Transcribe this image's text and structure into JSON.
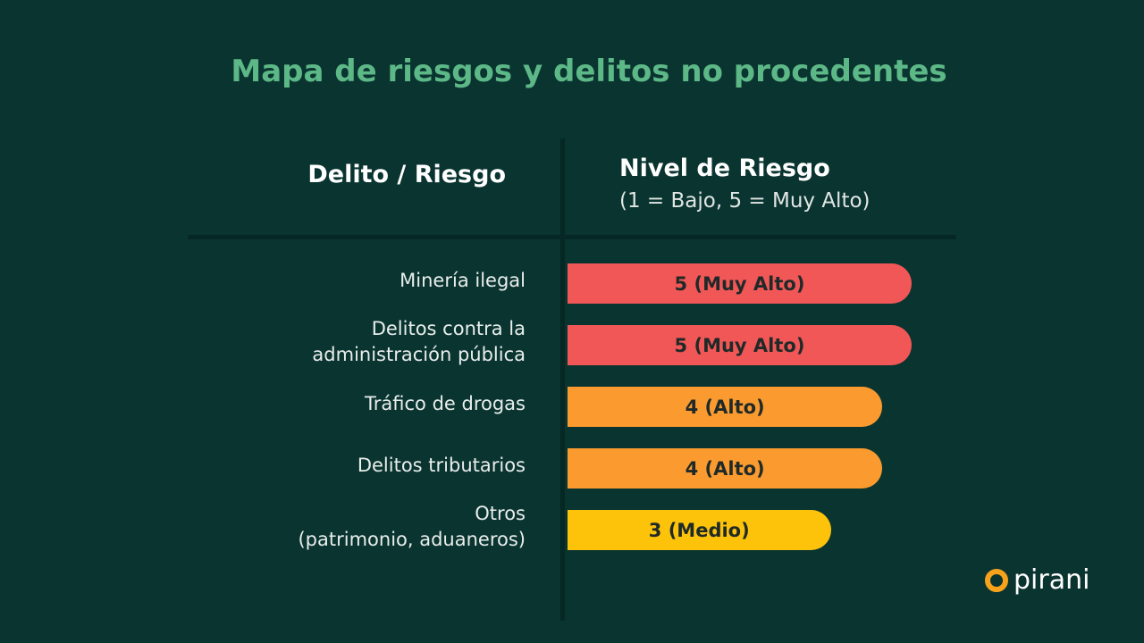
{
  "chart_data": {
    "type": "bar",
    "orientation": "horizontal",
    "title": "Mapa de riesgos y delitos no procedentes",
    "column_headers": [
      "Delito / Riesgo",
      "Nivel de Riesgo"
    ],
    "value_header_note": "(1 = Bajo, 5 = Muy Alto)",
    "categories": [
      "Minería ilegal",
      "Delitos contra la\nadministración pública",
      "Tráfico de drogas",
      "Delitos tributarios",
      "Otros\n(patrimonio, aduaneros)"
    ],
    "values": [
      5,
      5,
      4,
      4,
      3
    ],
    "data_labels": [
      "5 (Muy Alto)",
      "5 (Muy Alto)",
      "4 (Alto)",
      "4 (Alto)",
      "3 (Medio)"
    ],
    "colors": [
      "#f25757",
      "#f25757",
      "#fb9b2f",
      "#fb9b2f",
      "#fcc30a"
    ],
    "xlim": [
      0,
      5
    ],
    "grid": false
  },
  "brand": {
    "logo_text": "pirani",
    "logo_color": "#f7a21b"
  },
  "colors": {
    "background": "#0a3430",
    "title": "#5db887"
  }
}
